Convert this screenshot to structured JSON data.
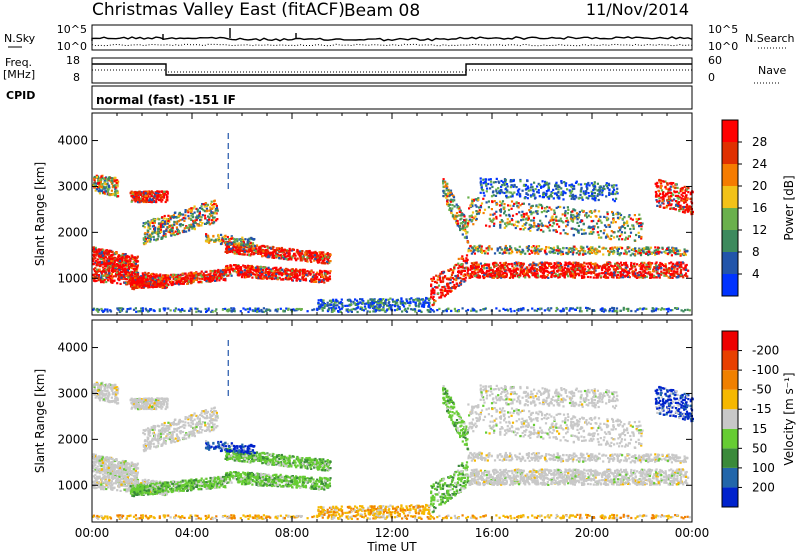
{
  "header": {
    "station": "Christmas Valley East (fitACF)",
    "beam": "Beam 08",
    "date": "11/Nov/2014"
  },
  "strip_panels": {
    "sky_label": "N.Sky",
    "search_label": "N.Search",
    "noise_ticks": [
      "10^5",
      "10^0"
    ],
    "freq_label_1": "Freq.",
    "freq_label_2": "[MHz]",
    "freq_ticks": [
      18,
      8
    ],
    "nave_label": "Nave",
    "nave_ticks": [
      60,
      0
    ],
    "cpid_label": "CPID",
    "cpid_text": "normal (fast) -151 IF"
  },
  "chart_data": [
    {
      "type": "heatmap",
      "name": "power",
      "ylabel": "Slant Range [km]",
      "yticks": [
        1000,
        2000,
        3000,
        4000
      ],
      "ylim": [
        200,
        4600
      ],
      "xlim": [
        0,
        24
      ],
      "xticks": [
        "00:00",
        "04:00",
        "08:00",
        "12:00",
        "16:00",
        "20:00",
        "00:00"
      ],
      "colorbar": {
        "label": "Power [dB]",
        "ticks": [
          "4",
          "8",
          "12",
          "16",
          "20",
          "24",
          "28"
        ],
        "colors": [
          "#0033ff",
          "#2255aa",
          "#3d8a5e",
          "#6ab04c",
          "#f2c218",
          "#f57c00",
          "#e03000",
          "#ff0000"
        ]
      }
    },
    {
      "type": "heatmap",
      "name": "velocity",
      "ylabel": "Slant Range [km]",
      "yticks": [
        1000,
        2000,
        3000,
        4000
      ],
      "ylim": [
        200,
        4600
      ],
      "xlim": [
        0,
        24
      ],
      "xticks": [
        "00:00",
        "04:00",
        "08:00",
        "12:00",
        "16:00",
        "20:00",
        "00:00"
      ],
      "xlabel": "Time UT",
      "colorbar": {
        "label": "Velocity [m s⁻¹]",
        "ticks": [
          "200",
          "100",
          "50",
          "15",
          "-15",
          "-50",
          "-100",
          "-200"
        ],
        "colors": [
          "#0022cc",
          "#2266aa",
          "#3a8a3a",
          "#66cc33",
          "#c8c8c8",
          "#f5b800",
          "#f08000",
          "#e84000",
          "#ee0000"
        ]
      }
    }
  ]
}
